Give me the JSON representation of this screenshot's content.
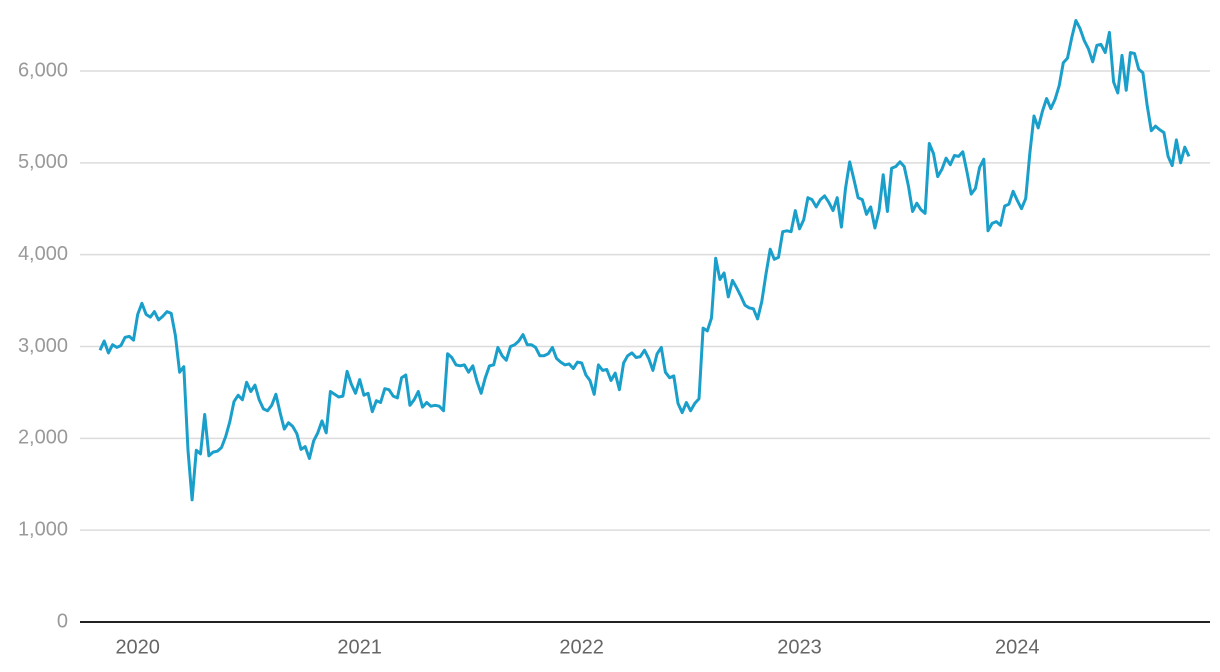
{
  "chart_data": {
    "type": "line",
    "categories": [
      null,
      null,
      null,
      null,
      null,
      null,
      null,
      null,
      null,
      "2020",
      null,
      null,
      null,
      null,
      null,
      null,
      null,
      null,
      null,
      null,
      null,
      null,
      null,
      null,
      null,
      null,
      null,
      null,
      null,
      null,
      null,
      null,
      null,
      null,
      null,
      null,
      null,
      null,
      null,
      null,
      null,
      null,
      null,
      null,
      null,
      null,
      null,
      null,
      null,
      null,
      null,
      null,
      null,
      null,
      null,
      null,
      null,
      null,
      null,
      null,
      null,
      null,
      "2021",
      null,
      null,
      null,
      null,
      null,
      null,
      null,
      null,
      null,
      null,
      null,
      null,
      null,
      null,
      null,
      null,
      null,
      null,
      null,
      null,
      null,
      null,
      null,
      null,
      null,
      null,
      null,
      null,
      null,
      null,
      null,
      null,
      null,
      null,
      null,
      null,
      null,
      null,
      null,
      null,
      null,
      null,
      null,
      null,
      null,
      null,
      null,
      null,
      null,
      null,
      null,
      null,
      "2022",
      null,
      null,
      null,
      null,
      null,
      null,
      null,
      null,
      null,
      null,
      null,
      null,
      null,
      null,
      null,
      null,
      null,
      null,
      null,
      null,
      null,
      null,
      null,
      null,
      null,
      null,
      null,
      null,
      null,
      null,
      null,
      null,
      null,
      null,
      null,
      null,
      null,
      null,
      null,
      null,
      null,
      null,
      null,
      null,
      null,
      null,
      null,
      null,
      null,
      null,
      null,
      "2023",
      null,
      null,
      null,
      null,
      null,
      null,
      null,
      null,
      null,
      null,
      null,
      null,
      null,
      null,
      null,
      null,
      null,
      null,
      null,
      null,
      null,
      null,
      null,
      null,
      null,
      null,
      null,
      null,
      null,
      null,
      null,
      null,
      null,
      null,
      null,
      null,
      null,
      null,
      null,
      null,
      null,
      null,
      null,
      null,
      null,
      null,
      null,
      null,
      null,
      null,
      null,
      "2024",
      null,
      null,
      null,
      null,
      null,
      null,
      null,
      null,
      null,
      null,
      null,
      null,
      null,
      null,
      null,
      null,
      null,
      null,
      null,
      null,
      null,
      null,
      null,
      null,
      null,
      null,
      null,
      null,
      null,
      null,
      null,
      null,
      null,
      null,
      null,
      null,
      null,
      null,
      null,
      null,
      null
    ],
    "values": [
      2960,
      3060,
      2930,
      3020,
      2990,
      3010,
      3100,
      3110,
      3070,
      3350,
      3470,
      3350,
      3320,
      3380,
      3290,
      3330,
      3380,
      3360,
      3120,
      2720,
      2780,
      1870,
      1330,
      1870,
      1830,
      2260,
      1810,
      1850,
      1860,
      1900,
      2020,
      2180,
      2400,
      2470,
      2420,
      2610,
      2510,
      2580,
      2420,
      2320,
      2300,
      2360,
      2480,
      2280,
      2100,
      2170,
      2130,
      2050,
      1880,
      1910,
      1780,
      1970,
      2060,
      2190,
      2060,
      2510,
      2480,
      2450,
      2460,
      2730,
      2590,
      2490,
      2640,
      2470,
      2490,
      2290,
      2410,
      2390,
      2540,
      2530,
      2460,
      2440,
      2660,
      2690,
      2360,
      2420,
      2510,
      2340,
      2390,
      2350,
      2360,
      2350,
      2300,
      2920,
      2880,
      2800,
      2790,
      2800,
      2720,
      2790,
      2620,
      2490,
      2660,
      2790,
      2800,
      2990,
      2900,
      2850,
      3000,
      3020,
      3060,
      3130,
      3020,
      3020,
      2990,
      2900,
      2900,
      2920,
      2990,
      2870,
      2830,
      2800,
      2810,
      2760,
      2830,
      2820,
      2690,
      2630,
      2480,
      2800,
      2740,
      2750,
      2630,
      2710,
      2530,
      2820,
      2900,
      2930,
      2880,
      2890,
      2960,
      2870,
      2740,
      2920,
      2990,
      2720,
      2660,
      2680,
      2380,
      2280,
      2390,
      2300,
      2380,
      2430,
      3200,
      3170,
      3310,
      3960,
      3730,
      3800,
      3540,
      3720,
      3640,
      3550,
      3450,
      3420,
      3410,
      3300,
      3490,
      3790,
      4060,
      3950,
      3970,
      4250,
      4260,
      4250,
      4480,
      4280,
      4380,
      4620,
      4600,
      4520,
      4600,
      4640,
      4570,
      4480,
      4620,
      4300,
      4720,
      5010,
      4820,
      4620,
      4600,
      4440,
      4520,
      4290,
      4480,
      4870,
      4470,
      4940,
      4960,
      5010,
      4960,
      4750,
      4470,
      4560,
      4490,
      4450,
      5210,
      5100,
      4850,
      4930,
      5050,
      4980,
      5080,
      5070,
      5120,
      4900,
      4660,
      4720,
      4950,
      5040,
      4260,
      4340,
      4360,
      4320,
      4530,
      4550,
      4690,
      4590,
      4500,
      4610,
      5100,
      5510,
      5380,
      5560,
      5700,
      5590,
      5690,
      5840,
      6090,
      6140,
      6360,
      6550,
      6460,
      6330,
      6240,
      6100,
      6280,
      6290,
      6200,
      6420,
      5880,
      5760,
      6170,
      5790,
      6200,
      6190,
      6020,
      5980,
      5630,
      5350,
      5400,
      5360,
      5330,
      5070,
      4970,
      5250,
      5000,
      5170,
      5070
    ],
    "color": "#1a9fcb",
    "ylim": [
      0,
      6650
    ],
    "yticks": [
      0,
      {
        "value": 1000,
        "label": "1,000"
      },
      {
        "value": 2000,
        "label": "2,000"
      },
      {
        "value": 3000,
        "label": "3,000"
      },
      {
        "value": 4000,
        "label": "4,000"
      },
      {
        "value": 5000,
        "label": "5,000"
      },
      {
        "value": 6000,
        "label": "6,000"
      }
    ],
    "grid": true
  }
}
